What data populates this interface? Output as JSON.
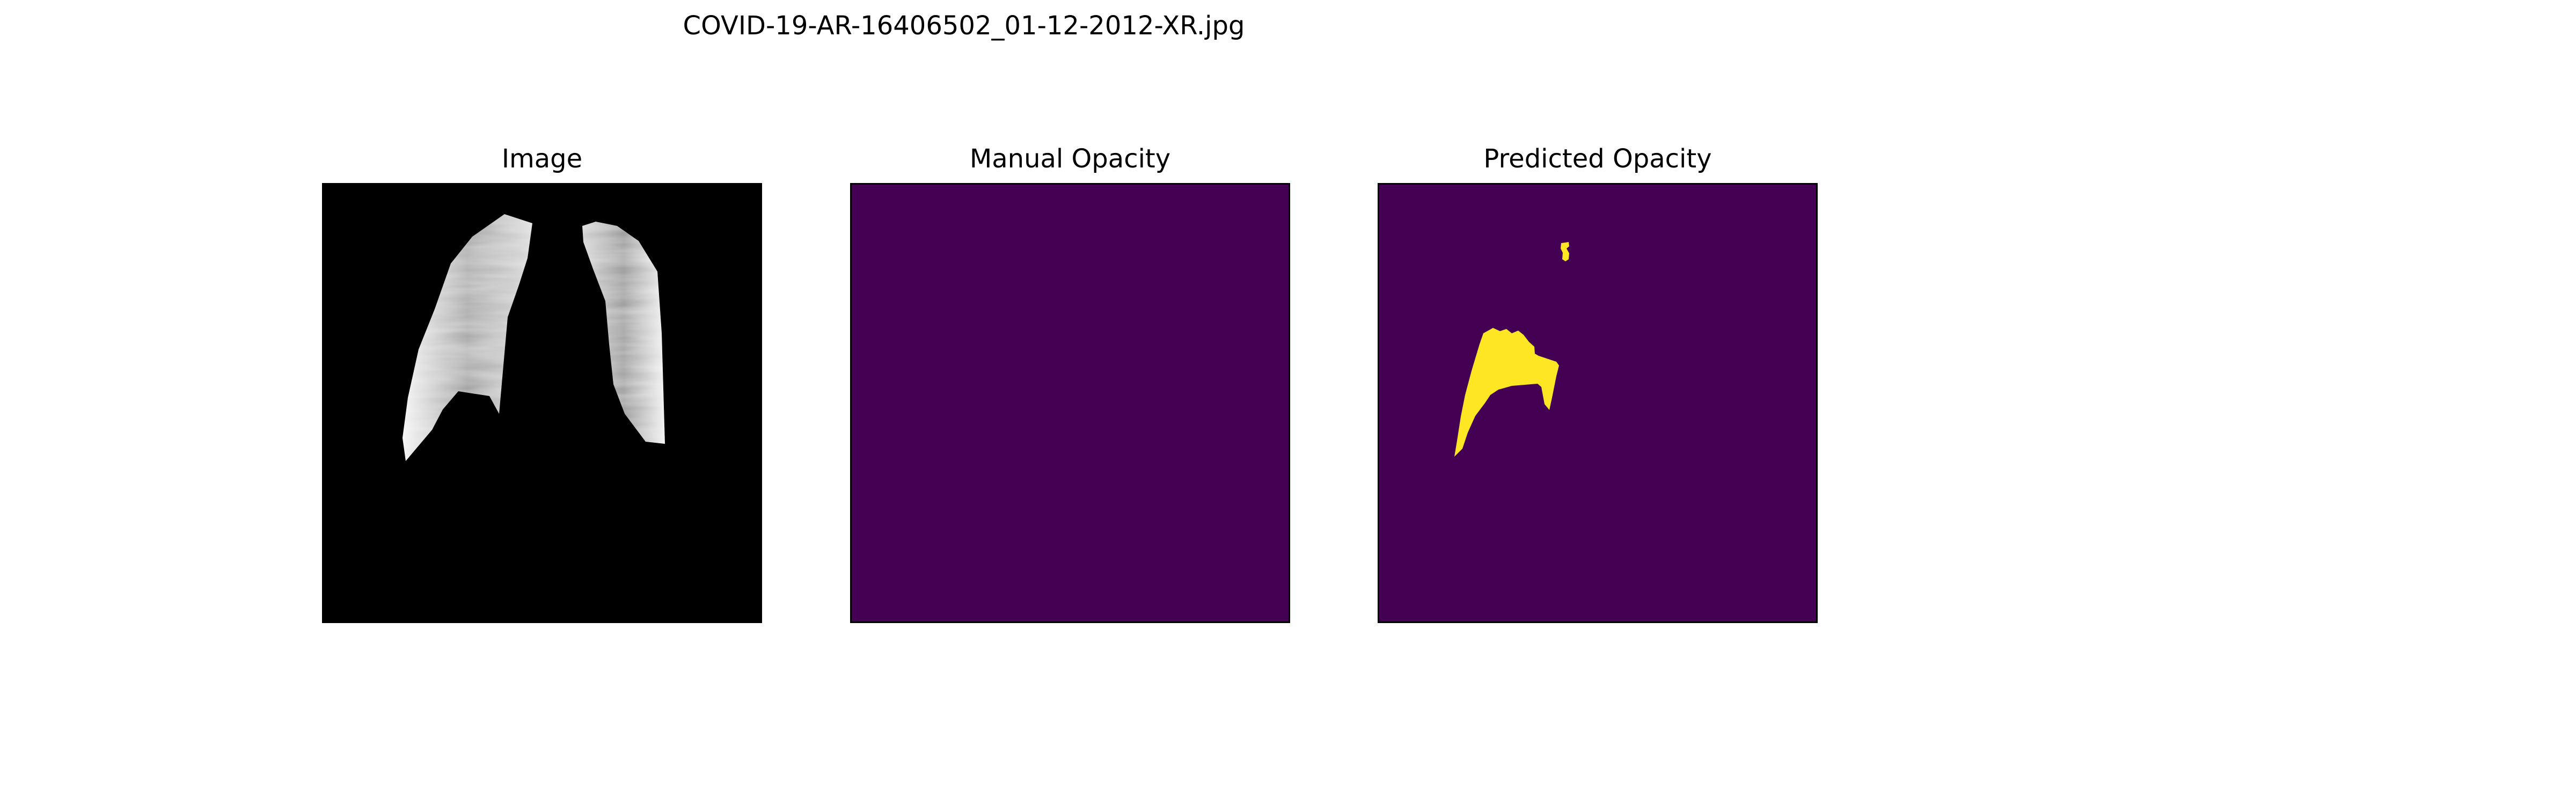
{
  "figure": {
    "suptitle": "COVID-19-AR-16406502_01-12-2012-XR.jpg"
  },
  "panels": [
    {
      "title": "Image",
      "content": "chest x-ray with lung fields only, black background"
    },
    {
      "title": "Manual Opacity",
      "content": "empty mask"
    },
    {
      "title": "Predicted Opacity",
      "content": "predicted opacity mask"
    }
  ],
  "colors": {
    "page_background": "#ffffff",
    "image_background": "#000000",
    "mask_background": "#440154",
    "mask_foreground": "#fde725",
    "frame": "#000000"
  }
}
